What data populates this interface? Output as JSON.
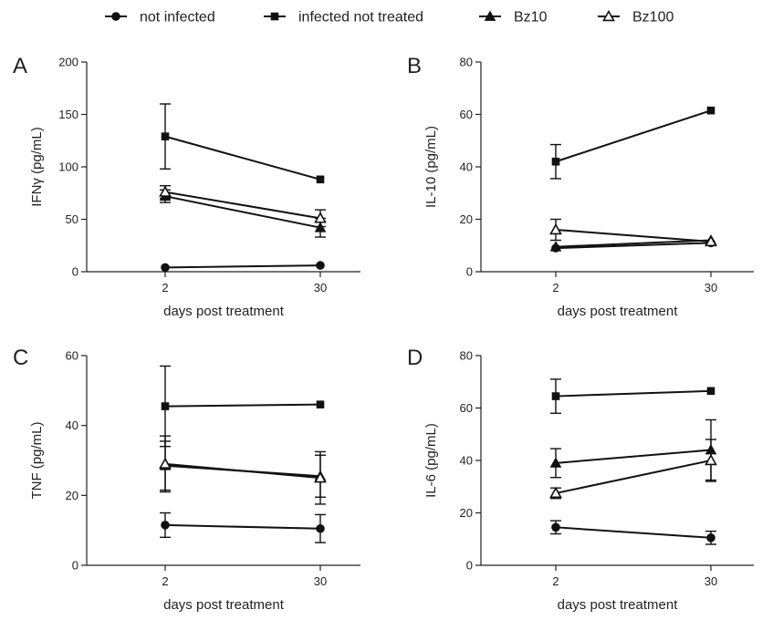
{
  "legend": [
    {
      "name": "not infected",
      "marker": "circle"
    },
    {
      "name": "infected not treated",
      "marker": "square"
    },
    {
      "name": "Bz10",
      "marker": "triangle"
    },
    {
      "name": "Bz100",
      "marker": "triangle-open"
    }
  ],
  "chart_data": [
    {
      "panel": "A",
      "type": "line",
      "xlabel": "days post treatment",
      "ylabel": "IFNγ (pg/mL)",
      "categories": [
        "2",
        "30"
      ],
      "ylim": [
        0,
        200
      ],
      "yticks": [
        0,
        50,
        100,
        150,
        200
      ],
      "series": [
        {
          "name": "not infected",
          "marker": "circle",
          "values": [
            4,
            6
          ],
          "errors": [
            0,
            0
          ]
        },
        {
          "name": "infected not treated",
          "marker": "square",
          "values": [
            129,
            88
          ],
          "errors": [
            31,
            0
          ]
        },
        {
          "name": "Bz10",
          "marker": "triangle",
          "values": [
            72,
            42
          ],
          "errors": [
            6,
            9
          ]
        },
        {
          "name": "Bz100",
          "marker": "triangle-open",
          "values": [
            76,
            51
          ],
          "errors": [
            6,
            8
          ]
        }
      ]
    },
    {
      "panel": "B",
      "type": "line",
      "xlabel": "days post treatment",
      "ylabel": "IL-10 (pg/mL)",
      "categories": [
        "2",
        "30"
      ],
      "ylim": [
        0,
        80
      ],
      "yticks": [
        0,
        20,
        40,
        60,
        80
      ],
      "series": [
        {
          "name": "not infected",
          "marker": "circle",
          "values": [
            9,
            11
          ],
          "errors": [
            0,
            0
          ]
        },
        {
          "name": "infected not treated",
          "marker": "square",
          "values": [
            42,
            61.5
          ],
          "errors": [
            6.5,
            0
          ]
        },
        {
          "name": "Bz10",
          "marker": "triangle",
          "values": [
            9.5,
            12
          ],
          "errors": [
            0,
            0
          ]
        },
        {
          "name": "Bz100",
          "marker": "triangle-open",
          "values": [
            16,
            11.5
          ],
          "errors": [
            4,
            0
          ]
        }
      ]
    },
    {
      "panel": "C",
      "type": "line",
      "xlabel": "days post treatment",
      "ylabel": "TNF (pg/mL)",
      "categories": [
        "2",
        "30"
      ],
      "ylim": [
        0,
        60
      ],
      "yticks": [
        0,
        20,
        40,
        60
      ],
      "series": [
        {
          "name": "not infected",
          "marker": "circle",
          "values": [
            11.5,
            10.5
          ],
          "errors": [
            3.5,
            4
          ]
        },
        {
          "name": "infected not treated",
          "marker": "square",
          "values": [
            45.5,
            46
          ],
          "errors": [
            11.5,
            0
          ]
        },
        {
          "name": "Bz10",
          "marker": "triangle",
          "values": [
            28.5,
            25.5
          ],
          "errors": [
            7,
            6
          ]
        },
        {
          "name": "Bz100",
          "marker": "triangle-open",
          "values": [
            29,
            25
          ],
          "errors": [
            8,
            7.5
          ]
        }
      ]
    },
    {
      "panel": "D",
      "type": "line",
      "xlabel": "days post treatment",
      "ylabel": "IL-6 (pg/mL)",
      "categories": [
        "2",
        "30"
      ],
      "ylim": [
        0,
        80
      ],
      "yticks": [
        0,
        20,
        40,
        60,
        80
      ],
      "series": [
        {
          "name": "not infected",
          "marker": "circle",
          "values": [
            14.5,
            10.5
          ],
          "errors": [
            2.5,
            2.5
          ]
        },
        {
          "name": "infected not treated",
          "marker": "square",
          "values": [
            64.5,
            66.5
          ],
          "errors": [
            6.5,
            0
          ]
        },
        {
          "name": "Bz10",
          "marker": "triangle",
          "values": [
            39,
            44
          ],
          "errors": [
            5.5,
            11.5
          ]
        },
        {
          "name": "Bz100",
          "marker": "triangle-open",
          "values": [
            27.5,
            40
          ],
          "errors": [
            2,
            8
          ]
        }
      ]
    }
  ]
}
